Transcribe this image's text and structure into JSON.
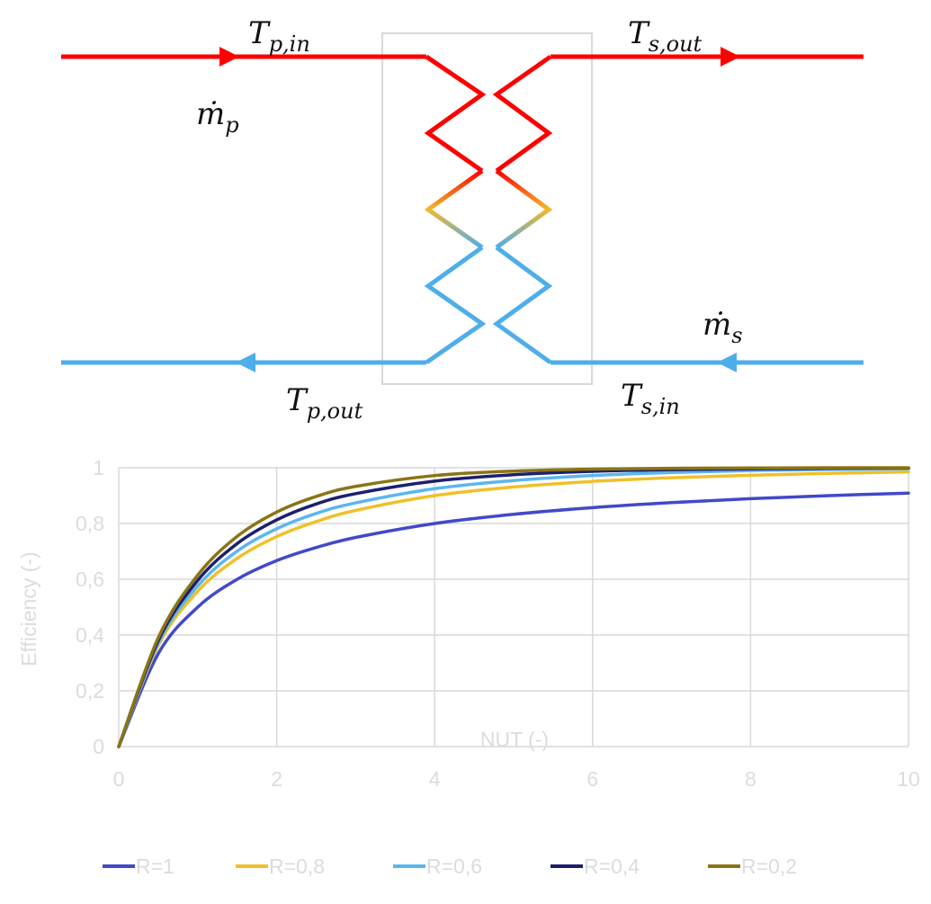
{
  "diagram": {
    "labels": {
      "t_p_in": {
        "base": "T",
        "sub": "p,in"
      },
      "t_s_out": {
        "base": "T",
        "sub": "s,out"
      },
      "m_p": {
        "base": "ṁ",
        "sub": "p"
      },
      "m_s": {
        "base": "ṁ",
        "sub": "s"
      },
      "t_p_out": {
        "base": "T",
        "sub": "p,out"
      },
      "t_s_in": {
        "base": "T",
        "sub": "s,in"
      }
    },
    "colors": {
      "hot": "#ff0000",
      "cold": "#4eaeea",
      "mid": "#f3b82b",
      "box": "#d9d9d9"
    }
  },
  "chart_data": {
    "type": "line",
    "xlabel": "NUT (-)",
    "ylabel": "Efficiency (-)",
    "xlim": [
      0,
      10
    ],
    "ylim": [
      0,
      1
    ],
    "x_ticks": [
      "0",
      "2",
      "4",
      "6",
      "8",
      "10"
    ],
    "y_ticks": [
      "0",
      "0,2",
      "0,4",
      "0,6",
      "0,8",
      "1"
    ],
    "grid": true,
    "legend_position": "bottom",
    "x": [
      0,
      0.5,
      1,
      1.5,
      2,
      2.5,
      3,
      4,
      5,
      6,
      7,
      8,
      9,
      10
    ],
    "series": [
      {
        "name": "R=1",
        "color": "#4249c8",
        "values": [
          0,
          0.333,
          0.5,
          0.6,
          0.667,
          0.714,
          0.75,
          0.8,
          0.833,
          0.857,
          0.875,
          0.889,
          0.9,
          0.909
        ]
      },
      {
        "name": "R=0,8",
        "color": "#f0c029",
        "values": [
          0,
          0.362,
          0.557,
          0.675,
          0.753,
          0.807,
          0.847,
          0.9,
          0.931,
          0.951,
          0.964,
          0.973,
          0.98,
          0.985
        ]
      },
      {
        "name": "R=0,6",
        "color": "#5cb6ee",
        "values": [
          0,
          0.371,
          0.576,
          0.701,
          0.781,
          0.836,
          0.874,
          0.925,
          0.954,
          0.972,
          0.983,
          0.99,
          0.994,
          0.996
        ]
      },
      {
        "name": "R=0,4",
        "color": "#1d1f6e",
        "values": [
          0,
          0.38,
          0.596,
          0.728,
          0.813,
          0.87,
          0.907,
          0.952,
          0.975,
          0.987,
          0.993,
          0.996,
          0.998,
          0.999
        ]
      },
      {
        "name": "R=0,2",
        "color": "#8a7415",
        "values": [
          0,
          0.39,
          0.615,
          0.754,
          0.841,
          0.897,
          0.933,
          0.972,
          0.988,
          0.995,
          0.998,
          0.999,
          1.0,
          1.0
        ]
      }
    ]
  }
}
